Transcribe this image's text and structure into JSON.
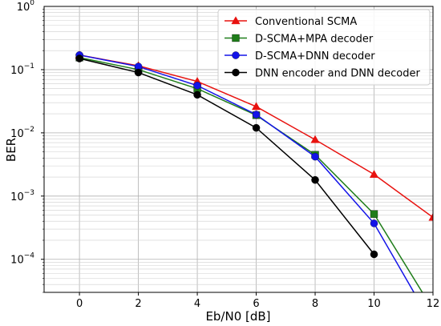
{
  "chart_data": {
    "type": "line",
    "title": "",
    "xlabel": "Eb/N0 [dB]",
    "ylabel": "BER",
    "xlim": [
      -1.2,
      12
    ],
    "ylim": [
      3e-05,
      1
    ],
    "yscale": "log",
    "grid": true,
    "legend_position": "top-right",
    "x_ticks": [
      0,
      2,
      4,
      6,
      8,
      10,
      12
    ],
    "y_ticks": [
      {
        "value": 1,
        "base": "10",
        "exp": "0"
      },
      {
        "value": 0.1,
        "base": "10",
        "exp": "−1"
      },
      {
        "value": 0.01,
        "base": "10",
        "exp": "−2"
      },
      {
        "value": 0.001,
        "base": "10",
        "exp": "−3"
      },
      {
        "value": 0.0001,
        "base": "10",
        "exp": "−4"
      }
    ],
    "series": [
      {
        "name": "Conventional SCMA",
        "color": "#e8120f",
        "marker": "triangle",
        "x": [
          0,
          2,
          4,
          6,
          8,
          10,
          12
        ],
        "y": [
          0.17,
          0.115,
          0.065,
          0.026,
          0.0078,
          0.0022,
          0.00046
        ]
      },
      {
        "name": "D-SCMA+MPA decoder",
        "color": "#1f7d1a",
        "marker": "square",
        "x": [
          0,
          2,
          4,
          6,
          8,
          10,
          12
        ],
        "y": [
          0.155,
          0.1,
          0.05,
          0.019,
          0.0045,
          0.00052,
          1.6e-05
        ]
      },
      {
        "name": "D-SCMA+DNN decoder",
        "color": "#1313e8",
        "marker": "circle",
        "x": [
          0,
          2,
          4,
          6,
          8,
          10,
          12
        ],
        "y": [
          0.17,
          0.112,
          0.056,
          0.0195,
          0.0042,
          0.00037,
          9e-06
        ]
      },
      {
        "name": "DNN encoder and DNN decoder",
        "color": "#000000",
        "marker": "circle",
        "x": [
          0,
          2,
          4,
          6,
          8,
          10
        ],
        "y": [
          0.15,
          0.09,
          0.04,
          0.012,
          0.0018,
          0.00012
        ]
      }
    ]
  }
}
